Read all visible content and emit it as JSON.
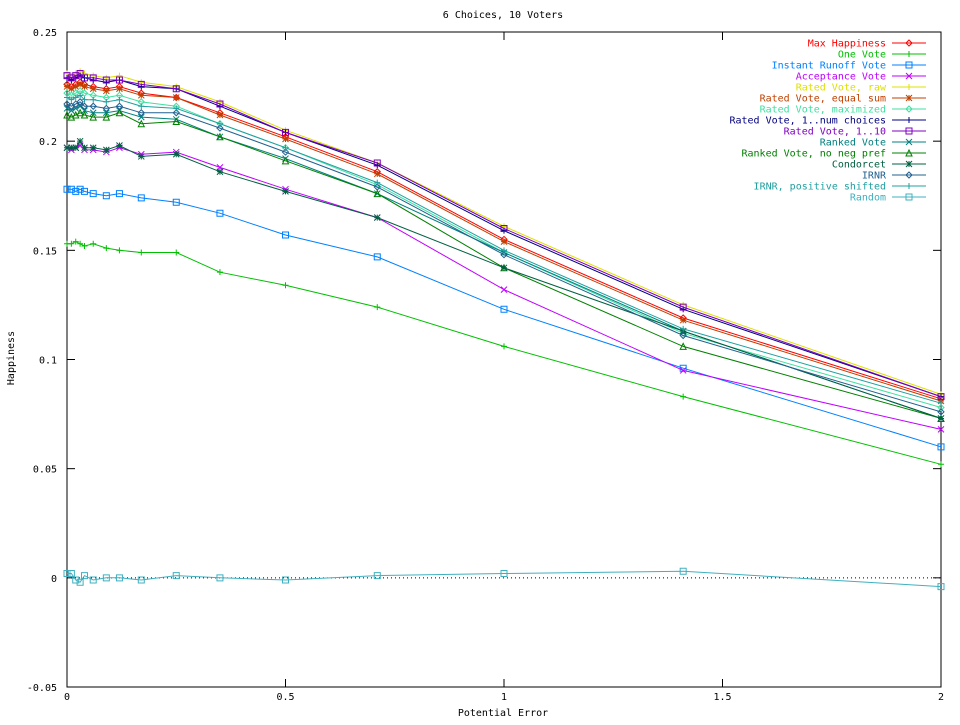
{
  "chart_data": {
    "type": "line",
    "title": "6 Choices, 10 Voters",
    "xlabel": "Potential Error",
    "ylabel": "Happiness",
    "xlim": [
      0,
      2
    ],
    "ylim": [
      -0.05,
      0.25
    ],
    "x_ticks": [
      0,
      0.5,
      1,
      1.5,
      2
    ],
    "x_tick_labels": [
      "0",
      "0.5",
      "1",
      "1.5",
      "2"
    ],
    "y_ticks": [
      -0.05,
      0,
      0.05,
      0.1,
      0.15,
      0.2,
      0.25
    ],
    "y_tick_labels": [
      "-0.05",
      "0",
      "0.05",
      "0.1",
      "0.15",
      "0.2",
      "0.25"
    ],
    "grid": false,
    "legend_position": "top-right",
    "x": [
      0,
      0.01,
      0.02,
      0.03,
      0.04,
      0.06,
      0.09,
      0.12,
      0.17,
      0.25,
      0.35,
      0.5,
      0.71,
      1,
      1.41,
      2
    ],
    "series": [
      {
        "name": "Max Happiness",
        "color": "#ff0000",
        "marker": "diamond",
        "values": [
          0.226,
          0.225,
          0.226,
          0.227,
          0.226,
          0.225,
          0.224,
          0.225,
          0.222,
          0.22,
          0.213,
          0.202,
          0.186,
          0.155,
          0.119,
          0.082
        ]
      },
      {
        "name": "One Vote",
        "color": "#00c000",
        "marker": "plus",
        "values": [
          0.153,
          0.153,
          0.154,
          0.153,
          0.152,
          0.153,
          0.151,
          0.15,
          0.149,
          0.149,
          0.14,
          0.134,
          0.124,
          0.106,
          0.083,
          0.052
        ]
      },
      {
        "name": "Instant Runoff Vote",
        "color": "#0080ff",
        "marker": "square",
        "values": [
          0.178,
          0.178,
          0.177,
          0.178,
          0.177,
          0.176,
          0.175,
          0.176,
          0.174,
          0.172,
          0.167,
          0.157,
          0.147,
          0.123,
          0.096,
          0.06
        ]
      },
      {
        "name": "Acceptance Vote",
        "color": "#c000ff",
        "marker": "x",
        "values": [
          0.197,
          0.196,
          0.197,
          0.198,
          0.196,
          0.196,
          0.195,
          0.197,
          0.194,
          0.195,
          0.188,
          0.178,
          0.165,
          0.132,
          0.095,
          0.068
        ]
      },
      {
        "name": "Rated Vote, raw",
        "color": "#e0e000",
        "marker": "plus",
        "values": [
          0.231,
          0.23,
          0.231,
          0.232,
          0.231,
          0.23,
          0.229,
          0.23,
          0.227,
          0.225,
          0.218,
          0.205,
          0.19,
          0.161,
          0.125,
          0.084
        ]
      },
      {
        "name": "Rated Vote, equal sum",
        "color": "#c04000",
        "marker": "star",
        "values": [
          0.225,
          0.224,
          0.225,
          0.226,
          0.225,
          0.224,
          0.223,
          0.224,
          0.221,
          0.22,
          0.212,
          0.201,
          0.185,
          0.154,
          0.118,
          0.081
        ]
      },
      {
        "name": "Rated Vote, maximized",
        "color": "#40e0a0",
        "marker": "diamond",
        "values": [
          0.222,
          0.221,
          0.222,
          0.223,
          0.222,
          0.221,
          0.22,
          0.221,
          0.218,
          0.216,
          0.208,
          0.197,
          0.18,
          0.149,
          0.112,
          0.078
        ]
      },
      {
        "name": "Rated Vote, 1..num choices",
        "color": "#000080",
        "marker": "plus",
        "values": [
          0.229,
          0.228,
          0.229,
          0.23,
          0.229,
          0.228,
          0.227,
          0.228,
          0.225,
          0.224,
          0.216,
          0.204,
          0.189,
          0.159,
          0.123,
          0.083
        ]
      },
      {
        "name": "Rated Vote, 1..10",
        "color": "#8000c0",
        "marker": "square",
        "values": [
          0.23,
          0.229,
          0.23,
          0.231,
          0.229,
          0.229,
          0.228,
          0.228,
          0.226,
          0.224,
          0.217,
          0.204,
          0.19,
          0.16,
          0.124,
          0.083
        ]
      },
      {
        "name": "Ranked Vote",
        "color": "#008080",
        "marker": "x",
        "values": [
          0.215,
          0.214,
          0.215,
          0.216,
          0.214,
          0.213,
          0.213,
          0.214,
          0.211,
          0.21,
          0.202,
          0.192,
          0.176,
          0.149,
          0.113,
          0.073
        ]
      },
      {
        "name": "Ranked Vote, no neg pref",
        "color": "#008000",
        "marker": "triangle",
        "values": [
          0.212,
          0.211,
          0.212,
          0.213,
          0.212,
          0.211,
          0.211,
          0.213,
          0.208,
          0.209,
          0.202,
          0.191,
          0.176,
          0.142,
          0.106,
          0.073
        ]
      },
      {
        "name": "Condorcet",
        "color": "#006040",
        "marker": "star",
        "values": [
          0.197,
          0.197,
          0.197,
          0.2,
          0.197,
          0.197,
          0.196,
          0.198,
          0.193,
          0.194,
          0.186,
          0.177,
          0.165,
          0.142,
          0.113,
          0.073
        ]
      },
      {
        "name": "IRNR",
        "color": "#206090",
        "marker": "diamond",
        "values": [
          0.217,
          0.216,
          0.217,
          0.218,
          0.216,
          0.216,
          0.215,
          0.216,
          0.213,
          0.213,
          0.206,
          0.195,
          0.179,
          0.148,
          0.111,
          0.076
        ]
      },
      {
        "name": "IRNR, positive shifted",
        "color": "#20a0a0",
        "marker": "plus",
        "values": [
          0.22,
          0.219,
          0.22,
          0.221,
          0.219,
          0.219,
          0.218,
          0.219,
          0.216,
          0.215,
          0.208,
          0.197,
          0.181,
          0.15,
          0.114,
          0.08
        ]
      },
      {
        "name": "Random",
        "color": "#40b0c0",
        "marker": "square",
        "values": [
          0.002,
          0.002,
          -0.001,
          -0.002,
          0.001,
          -0.001,
          0.0,
          0.0,
          -0.001,
          0.001,
          0.0,
          -0.001,
          0.001,
          0.002,
          0.003,
          -0.004
        ]
      }
    ]
  }
}
